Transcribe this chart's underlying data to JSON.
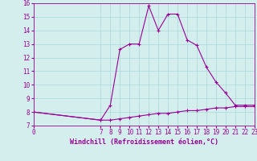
{
  "title": "",
  "xlabel": "Windchill (Refroidissement éolien,°C)",
  "ylabel": "",
  "background_color": "#d4eeed",
  "line_color": "#990099",
  "grid_color": "#aad8d8",
  "xlim": [
    0,
    23
  ],
  "ylim": [
    7,
    16
  ],
  "yticks": [
    7,
    8,
    9,
    10,
    11,
    12,
    13,
    14,
    15,
    16
  ],
  "xticks": [
    0,
    7,
    8,
    9,
    10,
    11,
    12,
    13,
    14,
    15,
    16,
    17,
    18,
    19,
    20,
    21,
    22,
    23
  ],
  "upper_x": [
    0,
    7,
    8,
    9,
    10,
    11,
    12,
    13,
    14,
    15,
    16,
    17,
    18,
    19,
    20,
    21,
    22,
    23
  ],
  "upper_y": [
    8.0,
    7.4,
    8.5,
    12.6,
    13.0,
    13.0,
    15.8,
    14.0,
    15.2,
    15.2,
    13.3,
    12.9,
    11.3,
    10.2,
    9.4,
    8.5,
    8.5,
    8.5
  ],
  "lower_x": [
    0,
    7,
    8,
    9,
    10,
    11,
    12,
    13,
    14,
    15,
    16,
    17,
    18,
    19,
    20,
    21,
    22,
    23
  ],
  "lower_y": [
    8.0,
    7.4,
    7.4,
    7.5,
    7.6,
    7.7,
    7.8,
    7.9,
    7.9,
    8.0,
    8.1,
    8.1,
    8.2,
    8.3,
    8.3,
    8.4,
    8.4,
    8.4
  ],
  "tick_fontsize": 5.5,
  "xlabel_fontsize": 6.0
}
